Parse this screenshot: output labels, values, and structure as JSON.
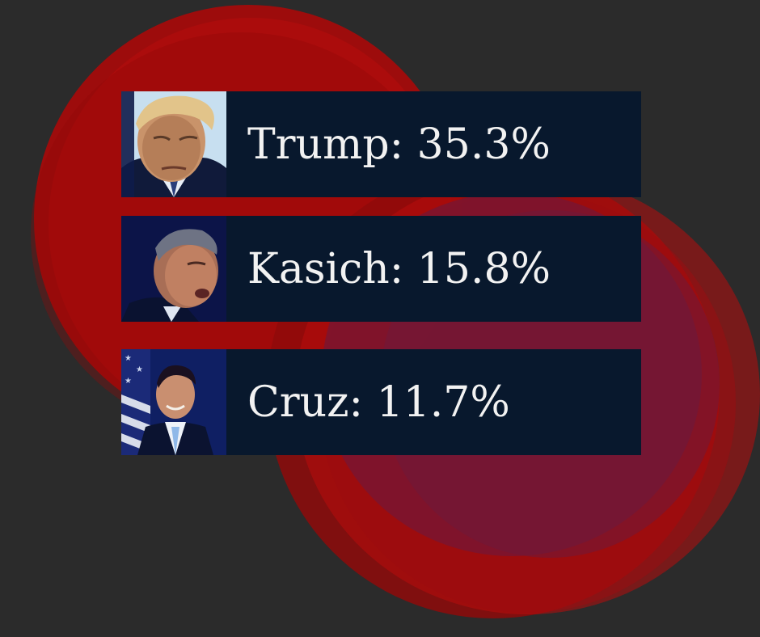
{
  "candidates": [
    {
      "name": "Trump",
      "percent": "35.3%",
      "label": "Trump: 35.3%",
      "value": 35.3
    },
    {
      "name": "Kasich",
      "percent": "15.8%",
      "label": "Kasich: 15.8%",
      "value": 15.8
    },
    {
      "name": "Cruz",
      "percent": "11.7%",
      "label": "Cruz: 11.7%",
      "value": 11.7
    }
  ],
  "colors": {
    "background": "#2b2b2b",
    "accent_red": "#b20c0c",
    "card": "#08182d",
    "text": "#f2f2f2"
  }
}
